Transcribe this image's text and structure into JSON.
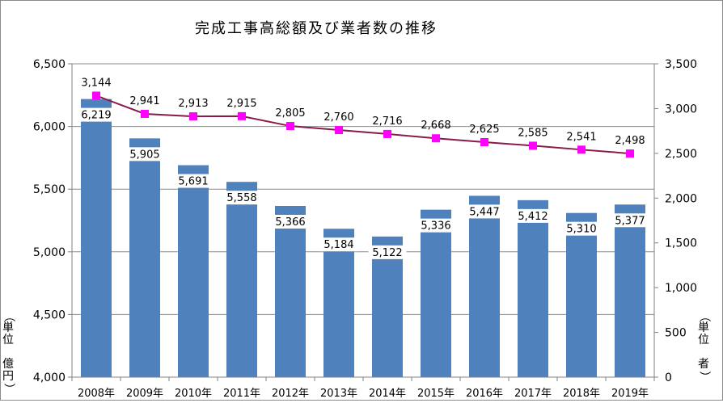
{
  "chart_data": {
    "type": "bar+line",
    "title": "完成工事高総額及び業者数の推移",
    "categories": [
      "2008年",
      "2009年",
      "2010年",
      "2011年",
      "2012年",
      "2013年",
      "2014年",
      "2015年",
      "2016年",
      "2017年",
      "2018年",
      "2019年"
    ],
    "bar_series": {
      "name": "完成工事高総額",
      "values": [
        6219,
        5905,
        5691,
        5558,
        5366,
        5184,
        5122,
        5336,
        5447,
        5412,
        5310,
        5377
      ],
      "labels": [
        "6,219",
        "5,905",
        "5,691",
        "5,558",
        "5,366",
        "5,184",
        "5,122",
        "5,336",
        "5,447",
        "5,412",
        "5,310",
        "5,377"
      ],
      "color": "#4f81bd"
    },
    "line_series": {
      "name": "業者数",
      "values": [
        3144,
        2941,
        2913,
        2915,
        2805,
        2760,
        2716,
        2668,
        2625,
        2585,
        2541,
        2498
      ],
      "labels": [
        "3,144",
        "2,941",
        "2,913",
        "2,915",
        "2,805",
        "2,760",
        "2,716",
        "2,668",
        "2,625",
        "2,585",
        "2,541",
        "2,498"
      ],
      "line_color": "#8b1a4a",
      "marker_color": "#ff00ff"
    },
    "y_left": {
      "min": 4000,
      "max": 6500,
      "ticks": [
        4000,
        4500,
        5000,
        5500,
        6000,
        6500
      ],
      "tick_labels": [
        "4,000",
        "4,500",
        "5,000",
        "5,500",
        "6,000",
        "6,500"
      ],
      "unit_label": "（単位 億円）",
      "unit_chars": [
        "（",
        "単",
        "位",
        "",
        "億",
        "円",
        "）"
      ]
    },
    "y_right": {
      "min": 0,
      "max": 3500,
      "ticks": [
        0,
        500,
        1000,
        1500,
        2000,
        2500,
        3000,
        3500
      ],
      "tick_labels": [
        "0",
        "500",
        "1,000",
        "1,500",
        "2,000",
        "2,500",
        "3,000",
        "3,500"
      ],
      "unit_label": "（単位 者）",
      "unit_chars": [
        "（",
        "単",
        "位",
        "",
        "者",
        "）"
      ]
    },
    "grid": true,
    "legend": "none"
  }
}
